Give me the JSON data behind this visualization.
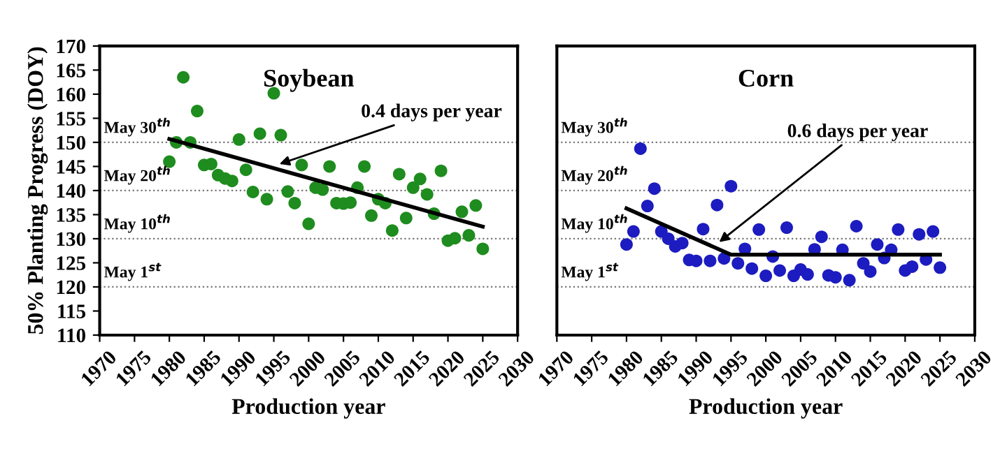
{
  "chart_data": [
    {
      "type": "scatter",
      "title": "Soybean",
      "xlabel": "Production year",
      "ylabel": "50% Planting Progress (DOY)",
      "xlim": [
        1970,
        2030
      ],
      "xticks": [
        1970,
        1975,
        1980,
        1985,
        1990,
        1995,
        2000,
        2005,
        2010,
        2015,
        2020,
        2025,
        2030
      ],
      "ylim": [
        110,
        170
      ],
      "yticks": [
        110,
        115,
        120,
        125,
        130,
        135,
        140,
        145,
        150,
        155,
        160,
        165,
        170
      ],
      "grid": false,
      "legend": false,
      "series": [
        {
          "marker": "circle",
          "color": "#1e8c1e",
          "x": [
            1980,
            1981,
            1982,
            1983,
            1984,
            1985,
            1986,
            1987,
            1988,
            1989,
            1990,
            1991,
            1992,
            1993,
            1994,
            1995,
            1996,
            1997,
            1998,
            1999,
            2000,
            2001,
            2002,
            2003,
            2004,
            2005,
            2006,
            2007,
            2008,
            2009,
            2010,
            2011,
            2012,
            2013,
            2014,
            2015,
            2016,
            2017,
            2018,
            2019,
            2020,
            2021,
            2022,
            2023,
            2024,
            2025
          ],
          "values": [
            146.0,
            150.0,
            163.5,
            150.0,
            156.5,
            145.3,
            145.5,
            143.2,
            142.5,
            142.0,
            150.6,
            144.3,
            139.7,
            151.8,
            138.2,
            160.2,
            151.5,
            139.8,
            137.4,
            145.3,
            133.1,
            140.6,
            140.2,
            145.0,
            137.4,
            137.3,
            137.5,
            140.6,
            145.0,
            134.8,
            138.2,
            137.4,
            131.7,
            143.4,
            134.3,
            140.6,
            142.4,
            139.2,
            135.2,
            144.1,
            129.6,
            130.1,
            135.6,
            130.7,
            136.9,
            127.9
          ]
        },
        {
          "type": "line",
          "color": "#000000",
          "x": [
            1980,
            2025
          ],
          "values": [
            150.7,
            132.5
          ]
        }
      ],
      "ref_lines": [
        {
          "axis": "y",
          "value": 150,
          "label": "May 30$^{th}$"
        },
        {
          "axis": "y",
          "value": 140,
          "label": "May 20$^{th}$"
        },
        {
          "axis": "y",
          "value": 130,
          "label": "May 10$^{th}$"
        },
        {
          "axis": "y",
          "value": 120,
          "label": "May 1$^{st}$"
        }
      ],
      "annotations": [
        {
          "text": "0.4 days per year",
          "x": 1995.8,
          "y": 145.5
        }
      ]
    },
    {
      "type": "scatter",
      "title": "Corn",
      "xlabel": "Production year",
      "xlim": [
        1970,
        2030
      ],
      "xticks": [
        1970,
        1975,
        1980,
        1985,
        1990,
        1995,
        2000,
        2005,
        2010,
        2015,
        2020,
        2025,
        2030
      ],
      "ylim": [
        110,
        170
      ],
      "tick_labels": "x",
      "grid": false,
      "legend": false,
      "series": [
        {
          "marker": "circle",
          "color": "#1c1cc0",
          "x": [
            1980,
            1981,
            1982,
            1983,
            1984,
            1985,
            1986,
            1987,
            1988,
            1989,
            1990,
            1991,
            1992,
            1993,
            1994,
            1995,
            1996,
            1997,
            1998,
            1999,
            2000,
            2001,
            2002,
            2003,
            2004,
            2005,
            2006,
            2007,
            2008,
            2009,
            2010,
            2011,
            2012,
            2013,
            2014,
            2015,
            2016,
            2017,
            2018,
            2019,
            2020,
            2021,
            2022,
            2023,
            2024,
            2025
          ],
          "values": [
            128.8,
            131.5,
            148.7,
            136.8,
            140.4,
            131.5,
            130.0,
            128.4,
            129.1,
            125.6,
            125.4,
            132.0,
            125.4,
            137.0,
            125.9,
            140.9,
            124.9,
            127.9,
            123.8,
            131.9,
            122.3,
            126.3,
            123.4,
            132.3,
            122.3,
            123.6,
            122.6,
            127.8,
            130.4,
            122.4,
            122.0,
            127.7,
            121.4,
            132.6,
            124.9,
            123.2,
            128.8,
            126.0,
            127.7,
            131.9,
            123.4,
            124.2,
            130.9,
            125.7,
            131.5,
            124.0
          ]
        },
        {
          "type": "line",
          "color": "#000000",
          "x": [
            1980,
            1995,
            2025
          ],
          "values": [
            136.3,
            126.7,
            126.7
          ]
        }
      ],
      "ref_lines": [
        {
          "axis": "y",
          "value": 150,
          "label": "May 30$^{th}$"
        },
        {
          "axis": "y",
          "value": 140,
          "label": "May 20$^{th}$"
        },
        {
          "axis": "y",
          "value": 130,
          "label": "May 10$^{th}$"
        },
        {
          "axis": "y",
          "value": 120,
          "label": "May 1$^{st}$"
        }
      ],
      "annotations": [
        {
          "text": "0.6 days per year",
          "x": 1993.3,
          "y": 129.3
        }
      ]
    }
  ]
}
